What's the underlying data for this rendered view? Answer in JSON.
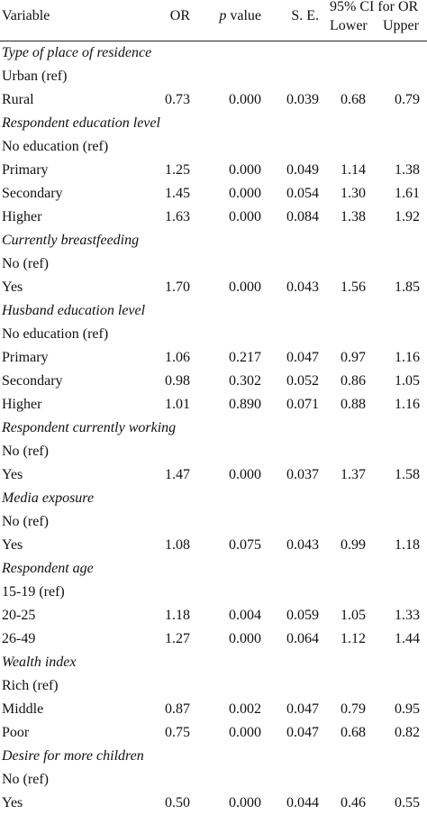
{
  "header": {
    "variable": "Variable",
    "or": "OR",
    "p_italic": "p",
    "p_rest": " value",
    "se": "S. E.",
    "ci_group": "95% CI for OR",
    "ci_lower": "Lower",
    "ci_upper": "Upper"
  },
  "rows": [
    {
      "type": "section",
      "label": "Type of place of residence"
    },
    {
      "type": "ref",
      "label": "Urban (ref)"
    },
    {
      "type": "data",
      "label": "Rural",
      "or": "0.73",
      "p": "0.000",
      "se": "0.039",
      "lower": "0.68",
      "upper": "0.79"
    },
    {
      "type": "section",
      "label": "Respondent education level"
    },
    {
      "type": "ref",
      "label": "No education (ref)"
    },
    {
      "type": "data",
      "label": "Primary",
      "or": "1.25",
      "p": "0.000",
      "se": "0.049",
      "lower": "1.14",
      "upper": "1.38"
    },
    {
      "type": "data",
      "label": "Secondary",
      "or": "1.45",
      "p": "0.000",
      "se": "0.054",
      "lower": "1.30",
      "upper": "1.61"
    },
    {
      "type": "data",
      "label": "Higher",
      "or": "1.63",
      "p": "0.000",
      "se": "0.084",
      "lower": "1.38",
      "upper": "1.92"
    },
    {
      "type": "section",
      "label": "Currently breastfeeding"
    },
    {
      "type": "ref",
      "label": "No (ref)"
    },
    {
      "type": "data",
      "label": "Yes",
      "or": "1.70",
      "p": "0.000",
      "se": "0.043",
      "lower": "1.56",
      "upper": "1.85"
    },
    {
      "type": "section",
      "label": "Husband education level"
    },
    {
      "type": "ref",
      "label": "No education (ref)"
    },
    {
      "type": "data",
      "label": "Primary",
      "or": "1.06",
      "p": "0.217",
      "se": "0.047",
      "lower": "0.97",
      "upper": "1.16"
    },
    {
      "type": "data",
      "label": "Secondary",
      "or": "0.98",
      "p": "0.302",
      "se": "0.052",
      "lower": "0.86",
      "upper": "1.05"
    },
    {
      "type": "data",
      "label": "Higher",
      "or": "1.01",
      "p": "0.890",
      "se": "0.071",
      "lower": "0.88",
      "upper": "1.16"
    },
    {
      "type": "section",
      "label": "Respondent currently working"
    },
    {
      "type": "ref",
      "label": "No (ref)"
    },
    {
      "type": "data",
      "label": "Yes",
      "or": "1.47",
      "p": "0.000",
      "se": "0.037",
      "lower": "1.37",
      "upper": "1.58"
    },
    {
      "type": "section",
      "label": "Media exposure"
    },
    {
      "type": "ref",
      "label": "No (ref)"
    },
    {
      "type": "data",
      "label": "Yes",
      "or": "1.08",
      "p": "0.075",
      "se": "0.043",
      "lower": "0.99",
      "upper": "1.18"
    },
    {
      "type": "section",
      "label": "Respondent age"
    },
    {
      "type": "ref",
      "label": "15-19 (ref)"
    },
    {
      "type": "data",
      "label": "20-25",
      "or": "1.18",
      "p": "0.004",
      "se": "0.059",
      "lower": "1.05",
      "upper": "1.33"
    },
    {
      "type": "data",
      "label": "26-49",
      "or": "1.27",
      "p": "0.000",
      "se": "0.064",
      "lower": "1.12",
      "upper": "1.44"
    },
    {
      "type": "section",
      "label": "Wealth index"
    },
    {
      "type": "ref",
      "label": "Rich (ref)"
    },
    {
      "type": "data",
      "label": "Middle",
      "or": "0.87",
      "p": "0.002",
      "se": "0.047",
      "lower": "0.79",
      "upper": "0.95"
    },
    {
      "type": "data",
      "label": "Poor",
      "or": "0.75",
      "p": "0.000",
      "se": "0.047",
      "lower": "0.68",
      "upper": "0.82"
    },
    {
      "type": "section",
      "label": "Desire for more children"
    },
    {
      "type": "ref",
      "label": "No (ref)"
    },
    {
      "type": "data",
      "label": "Yes",
      "or": "0.50",
      "p": "0.000",
      "se": "0.044",
      "lower": "0.46",
      "upper": "0.55"
    }
  ]
}
